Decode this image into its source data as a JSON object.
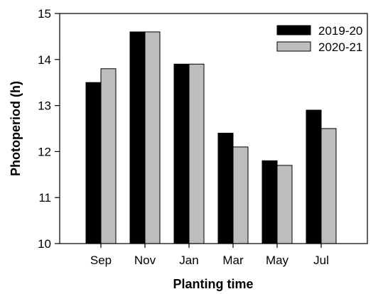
{
  "chart_data": {
    "type": "bar",
    "xlabel": "Planting time",
    "ylabel": "Photoperiod (h)",
    "categories": [
      "Sep",
      "Nov",
      "Jan",
      "Mar",
      "May",
      "Jul"
    ],
    "ylim": [
      10,
      15
    ],
    "yticks": [
      "10",
      "11",
      "12",
      "13",
      "14",
      "15"
    ],
    "grid": false,
    "legend_position": "top-right",
    "series": [
      {
        "name": "2019-20",
        "color": "#000000",
        "values": [
          13.5,
          14.6,
          13.9,
          12.4,
          11.8,
          12.9
        ]
      },
      {
        "name": "2020-21",
        "color": "#bdbdbd",
        "values": [
          13.8,
          14.6,
          13.9,
          12.1,
          11.7,
          12.5
        ]
      }
    ]
  }
}
